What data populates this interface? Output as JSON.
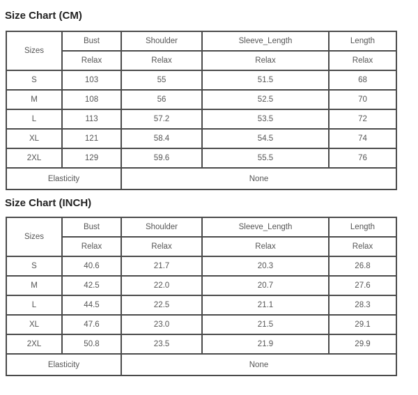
{
  "charts": [
    {
      "title": "Size Chart (CM)",
      "headers": {
        "sizes": "Sizes",
        "columns": [
          "Bust",
          "Shoulder",
          "Sleeve_Length",
          "Length"
        ],
        "sub": [
          "Relax",
          "Relax",
          "Relax",
          "Relax"
        ]
      },
      "rows": [
        {
          "size": "S",
          "values": [
            "103",
            "55",
            "51.5",
            "68"
          ]
        },
        {
          "size": "M",
          "values": [
            "108",
            "56",
            "52.5",
            "70"
          ]
        },
        {
          "size": "L",
          "values": [
            "113",
            "57.2",
            "53.5",
            "72"
          ]
        },
        {
          "size": "XL",
          "values": [
            "121",
            "58.4",
            "54.5",
            "74"
          ]
        },
        {
          "size": "2XL",
          "values": [
            "129",
            "59.6",
            "55.5",
            "76"
          ]
        }
      ],
      "elasticity": {
        "label": "Elasticity",
        "value": "None"
      }
    },
    {
      "title": "Size Chart (INCH)",
      "headers": {
        "sizes": "Sizes",
        "columns": [
          "Bust",
          "Shoulder",
          "Sleeve_Length",
          "Length"
        ],
        "sub": [
          "Relax",
          "Relax",
          "Relax",
          "Relax"
        ]
      },
      "rows": [
        {
          "size": "S",
          "values": [
            "40.6",
            "21.7",
            "20.3",
            "26.8"
          ]
        },
        {
          "size": "M",
          "values": [
            "42.5",
            "22.0",
            "20.7",
            "27.6"
          ]
        },
        {
          "size": "L",
          "values": [
            "44.5",
            "22.5",
            "21.1",
            "28.3"
          ]
        },
        {
          "size": "XL",
          "values": [
            "47.6",
            "23.0",
            "21.5",
            "29.1"
          ]
        },
        {
          "size": "2XL",
          "values": [
            "50.8",
            "23.5",
            "21.9",
            "29.9"
          ]
        }
      ],
      "elasticity": {
        "label": "Elasticity",
        "value": "None"
      }
    }
  ]
}
